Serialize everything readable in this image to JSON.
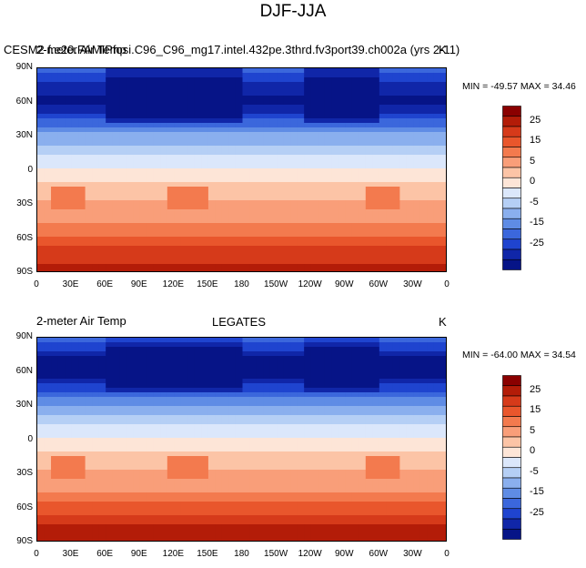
{
  "figure": {
    "title": "DJF-JJA"
  },
  "panels": [
    {
      "left_title": "2-meter Air Temp",
      "center_title": "CESM2 f.e20.FAMIPfosi.C96_C96_mg17.intel.432pe.3thrd.fv3port39.ch002a (yrs 2-11)",
      "units": "K",
      "min_max": "MIN = -49.57 MAX =  34.46"
    },
    {
      "left_title": "2-meter Air Temp",
      "center_title": "LEGATES",
      "units": "K",
      "min_max": "MIN = -64.00 MAX =  34.54"
    }
  ],
  "axes": {
    "lat_labels": [
      "90N",
      "60N",
      "30N",
      "0",
      "30S",
      "60S",
      "90S"
    ],
    "lon_labels": [
      "0",
      "30E",
      "60E",
      "90E",
      "120E",
      "150E",
      "180",
      "150W",
      "120W",
      "90W",
      "60W",
      "30W",
      "0"
    ]
  },
  "colorbar": {
    "labels": [
      "25",
      "15",
      "5",
      "0",
      "-5",
      "-15",
      "-25"
    ],
    "colors": [
      "#8a0000",
      "#b31c08",
      "#d63a1a",
      "#e9562c",
      "#f37a4e",
      "#f99e79",
      "#fcc4a6",
      "#fde5d7",
      "#dbe7fb",
      "#b5cff5",
      "#8aafee",
      "#5f8ce5",
      "#3b67dc",
      "#1f44cf",
      "#1026a8",
      "#061487"
    ]
  },
  "chart_data": {
    "type": "heatmap",
    "title": "DJF-JJA",
    "variable": "2-meter Air Temp",
    "units": "K",
    "xlabel": "",
    "ylabel": "",
    "x_ticks": [
      "0",
      "30E",
      "60E",
      "90E",
      "120E",
      "150E",
      "180",
      "150W",
      "120W",
      "90W",
      "60W",
      "30W",
      "0"
    ],
    "y_ticks": [
      "90N",
      "60N",
      "30N",
      "0",
      "30S",
      "60S",
      "90S"
    ],
    "xlim": [
      0,
      360
    ],
    "ylim": [
      -90,
      90
    ],
    "colorbar_levels": [
      -25,
      -15,
      -5,
      0,
      5,
      15,
      25
    ],
    "series": [
      {
        "name": "CESM2 f.e20.FAMIPfosi.C96_C96_mg17.intel.432pe.3thrd.fv3port39.ch002a (yrs 2-11)",
        "min": -49.57,
        "max": 34.46,
        "zonal_profile": {
          "lat": [
            90,
            75,
            60,
            45,
            30,
            15,
            0,
            -15,
            -30,
            -45,
            -60,
            -75,
            -90
          ],
          "value": [
            -18,
            -28,
            -32,
            -20,
            -8,
            -2,
            0,
            3,
            6,
            10,
            16,
            24,
            26
          ]
        }
      },
      {
        "name": "LEGATES",
        "min": -64.0,
        "max": 34.54,
        "zonal_profile": {
          "lat": [
            90,
            75,
            60,
            45,
            30,
            15,
            0,
            -15,
            -30,
            -45,
            -60,
            -75,
            -90
          ],
          "value": [
            -15,
            -30,
            -35,
            -22,
            -9,
            -2,
            0,
            3,
            6,
            10,
            18,
            25,
            26
          ]
        }
      }
    ]
  }
}
